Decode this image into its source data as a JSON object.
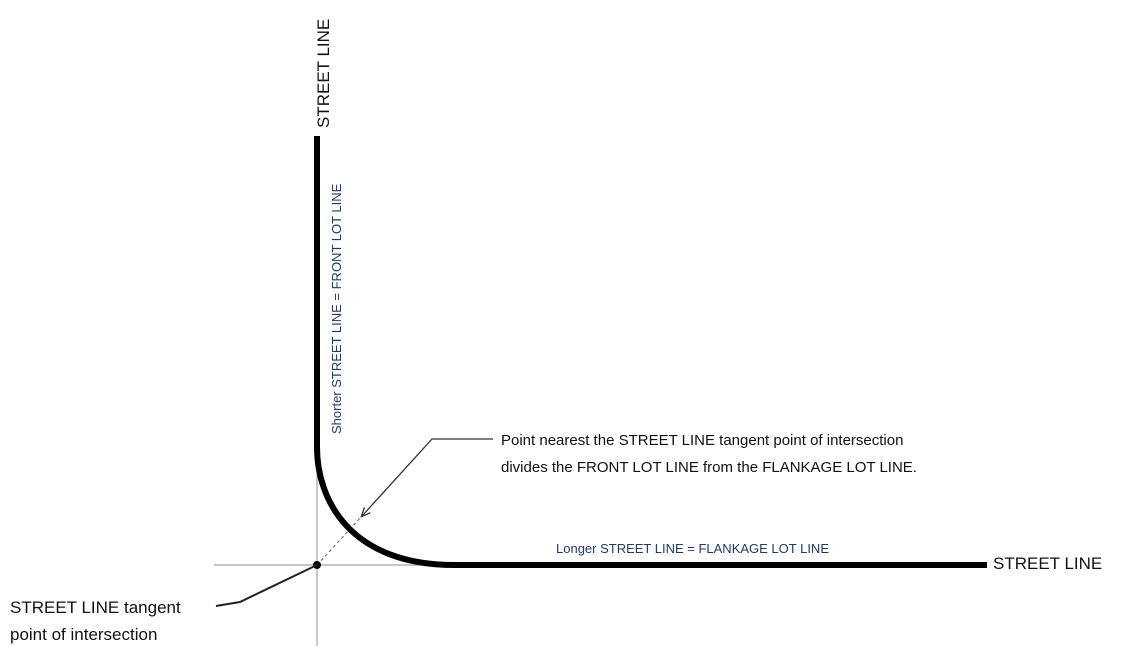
{
  "colors": {
    "background": "#ffffff",
    "street_line": "#000000",
    "axis": "#8c8c8c",
    "leader": "#333333",
    "blue_label": "#1f3a6e"
  },
  "labels": {
    "street_line_top": "STREET LINE",
    "street_line_right": "STREET LINE",
    "front_lot_line": "Shorter STREET LINE = FRONT LOT LINE",
    "flankage_lot_line": "Longer STREET LINE = FLANKAGE LOT LINE",
    "callout_line1": "Point nearest the STREET LINE tangent point of intersection",
    "callout_line2": "divides the FRONT LOT LINE from the FLANKAGE LOT LINE.",
    "intersection_line1": "STREET LINE tangent",
    "intersection_line2": "point of intersection"
  }
}
